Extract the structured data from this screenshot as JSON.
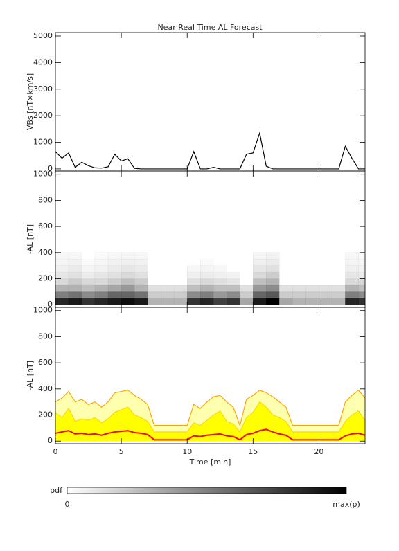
{
  "chart_data": [
    {
      "type": "line",
      "title": "Near Real Time AL Forecast",
      "ylabel": "VBs [nT×km/s]",
      "x": [
        0,
        0.5,
        1,
        1.5,
        2,
        2.5,
        3,
        3.5,
        4,
        4.5,
        5,
        5.5,
        6,
        6.5,
        7,
        7.5,
        8,
        8.5,
        9,
        9.5,
        10,
        10.5,
        11,
        11.5,
        12,
        12.5,
        13,
        13.5,
        14,
        14.5,
        15,
        15.5,
        16,
        16.5,
        17,
        17.5,
        18,
        18.5,
        19,
        19.5,
        20,
        20.5,
        21,
        21.5,
        22,
        22.5,
        23,
        23.5
      ],
      "series": [
        {
          "color": "#000000",
          "values": [
            650,
            400,
            600,
            60,
            250,
            120,
            40,
            30,
            80,
            550,
            300,
            380,
            20,
            0,
            0,
            0,
            0,
            0,
            0,
            0,
            0,
            650,
            0,
            0,
            60,
            0,
            0,
            0,
            0,
            550,
            600,
            1350,
            100,
            0,
            0,
            0,
            0,
            0,
            0,
            0,
            0,
            0,
            0,
            0,
            850,
            400,
            0,
            0
          ]
        }
      ],
      "xlim": [
        0,
        23.5
      ],
      "xticks": [
        0,
        5,
        10,
        15,
        20
      ],
      "ylim": [
        -80,
        5130
      ],
      "yticks": [
        0,
        1000,
        2000,
        3000,
        4000,
        5000
      ]
    },
    {
      "type": "heatmap",
      "ylabel": "-AL [nT]",
      "xbins": [
        0,
        1,
        2,
        3,
        4,
        5,
        6,
        7,
        8,
        9,
        10,
        11,
        12,
        13,
        14,
        15,
        16,
        17,
        18,
        19,
        20,
        21,
        22,
        23,
        23.5
      ],
      "ybins": [
        0,
        50,
        100,
        150,
        200,
        250,
        300,
        350,
        400
      ],
      "colormap": [
        "#ffffff",
        "#000000"
      ],
      "z": [
        [
          0.85,
          0.9,
          0.8,
          0.85,
          0.9,
          0.95,
          0.9,
          0.3,
          0.3,
          0.3,
          0.8,
          0.85,
          0.75,
          0.8,
          0.35,
          0.9,
          1,
          0.35,
          0.3,
          0.3,
          0.3,
          0.3,
          0.85,
          0.8
        ],
        [
          0.5,
          0.55,
          0.45,
          0.5,
          0.6,
          0.6,
          0.55,
          0.2,
          0.2,
          0.2,
          0.45,
          0.5,
          0.4,
          0.45,
          0.2,
          0.6,
          0.65,
          0.2,
          0.2,
          0.2,
          0.2,
          0.2,
          0.5,
          0.45
        ],
        [
          0.3,
          0.3,
          0.25,
          0.3,
          0.35,
          0.4,
          0.3,
          0.12,
          0.12,
          0.12,
          0.25,
          0.3,
          0.25,
          0.25,
          0.12,
          0.4,
          0.45,
          0.12,
          0.12,
          0.12,
          0.12,
          0.12,
          0.3,
          0.25
        ],
        [
          0.15,
          0.2,
          0.15,
          0.15,
          0.2,
          0.25,
          0.2,
          0,
          0,
          0,
          0.12,
          0.15,
          0.12,
          0.1,
          0,
          0.25,
          0.3,
          0,
          0,
          0,
          0,
          0,
          0.15,
          0.15
        ],
        [
          0.1,
          0.12,
          0.08,
          0.1,
          0.12,
          0.15,
          0.12,
          0,
          0,
          0,
          0.06,
          0.08,
          0.06,
          0.05,
          0,
          0.15,
          0.2,
          0,
          0,
          0,
          0,
          0,
          0.1,
          0.08
        ],
        [
          0.06,
          0.08,
          0.04,
          0.05,
          0.08,
          0.1,
          0.08,
          0,
          0,
          0,
          0.03,
          0.04,
          0.03,
          0,
          0,
          0.1,
          0.12,
          0,
          0,
          0,
          0,
          0,
          0.06,
          0.05
        ],
        [
          0.04,
          0.05,
          0.02,
          0.03,
          0.05,
          0.06,
          0.05,
          0,
          0,
          0,
          0,
          0.02,
          0,
          0,
          0,
          0.06,
          0.08,
          0,
          0,
          0,
          0,
          0,
          0.04,
          0.03
        ],
        [
          0.03,
          0.03,
          0,
          0.02,
          0.03,
          0.04,
          0.03,
          0,
          0,
          0,
          0,
          0,
          0,
          0,
          0,
          0.04,
          0.05,
          0,
          0,
          0,
          0,
          0,
          0.03,
          0.02
        ]
      ],
      "xlim": [
        0,
        23.5
      ],
      "xticks": [
        0,
        5,
        10,
        15,
        20
      ],
      "ylim": [
        -20,
        1025
      ],
      "yticks": [
        0,
        200,
        400,
        600,
        800,
        1000
      ]
    },
    {
      "type": "area",
      "ylabel": "-AL [nT]",
      "xlabel": "Time [min]",
      "x": [
        0,
        0.5,
        1,
        1.5,
        2,
        2.5,
        3,
        3.5,
        4,
        4.5,
        5,
        5.5,
        6,
        6.5,
        7,
        7.5,
        8,
        8.5,
        9,
        9.5,
        10,
        10.5,
        11,
        11.5,
        12,
        12.5,
        13,
        13.5,
        14,
        14.5,
        15,
        15.5,
        16,
        16.5,
        17,
        17.5,
        18,
        18.5,
        19,
        19.5,
        20,
        20.5,
        21,
        21.5,
        22,
        22.5,
        23,
        23.5
      ],
      "series": [
        {
          "color": "#ffa500",
          "fill": "#ffffb0",
          "values": [
            300,
            330,
            380,
            300,
            320,
            280,
            300,
            260,
            300,
            370,
            380,
            390,
            350,
            320,
            280,
            120,
            120,
            120,
            120,
            120,
            120,
            280,
            250,
            300,
            340,
            350,
            300,
            260,
            120,
            320,
            350,
            390,
            370,
            340,
            300,
            260,
            120,
            120,
            120,
            120,
            120,
            120,
            120,
            120,
            300,
            350,
            390,
            330
          ]
        },
        {
          "color": "#ffd800",
          "fill": "#ffff00",
          "values": [
            220,
            180,
            250,
            150,
            170,
            160,
            180,
            140,
            170,
            220,
            240,
            260,
            200,
            180,
            150,
            70,
            70,
            70,
            70,
            70,
            70,
            140,
            120,
            160,
            200,
            230,
            150,
            130,
            70,
            180,
            220,
            300,
            260,
            200,
            180,
            150,
            70,
            70,
            70,
            70,
            70,
            70,
            70,
            70,
            150,
            200,
            230,
            160
          ]
        },
        {
          "color": "#ff0000",
          "values": [
            60,
            70,
            80,
            55,
            60,
            50,
            55,
            45,
            60,
            70,
            75,
            80,
            65,
            60,
            50,
            10,
            10,
            10,
            10,
            10,
            10,
            40,
            35,
            45,
            50,
            55,
            40,
            35,
            10,
            50,
            60,
            80,
            90,
            70,
            55,
            45,
            10,
            10,
            10,
            10,
            10,
            10,
            10,
            10,
            40,
            55,
            60,
            45
          ]
        }
      ],
      "xlim": [
        0,
        23.5
      ],
      "xticks": [
        0,
        5,
        10,
        15,
        20
      ],
      "ylim": [
        -20,
        1025
      ],
      "yticks": [
        0,
        200,
        400,
        600,
        800,
        1000
      ]
    }
  ],
  "colorbar": {
    "label": "pdf",
    "min_label": "0",
    "max_label": "max(p)",
    "colormap": [
      "#ffffff",
      "#000000"
    ]
  }
}
